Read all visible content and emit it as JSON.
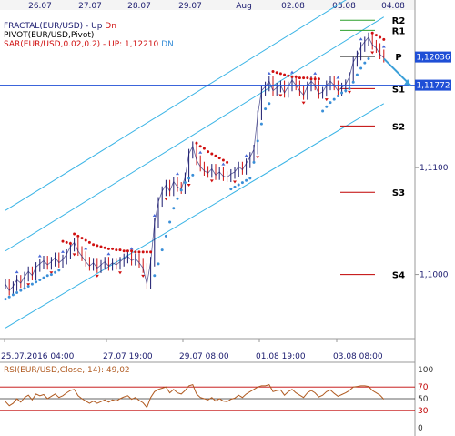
{
  "chart_data": {
    "type": "line",
    "title": "",
    "top_dates": [
      "26.07",
      "27.07",
      "28.07",
      "29.07",
      "Aug",
      "02.08",
      "03.08",
      "04.08"
    ],
    "bottom_time_labels": [
      "25.07.2016 04:00",
      "27.07 19:00",
      "29.07 08:00",
      "01.08 19:00",
      "03.08 08:00"
    ],
    "price_axis": {
      "ticks": [
        "1,1100",
        "1,1000"
      ],
      "ylim": [
        1.094,
        1.1245
      ]
    },
    "price_tags": [
      {
        "label": "1,12036",
        "value": 1.12036,
        "color": "#1f4fd6"
      },
      {
        "label": "1,11772",
        "value": 1.11772,
        "color": "#1f4fd6"
      }
    ],
    "legend": [
      {
        "text": "FRACTAL(EUR/USD) - ",
        "items": [
          {
            "text": "Up",
            "color": "#1a1a6e"
          },
          {
            "text": "Dn",
            "color": "#d01010"
          }
        ],
        "color": "#1a1a6e"
      },
      {
        "text": "PIVOT(EUR/USD,Pivot)",
        "items": [],
        "color": "#000000"
      },
      {
        "text": "SAR(EUR/USD,0.02,0.2) - UP: 1,12210",
        "items": [
          {
            "text": "DN",
            "color": "#3a8fd8"
          }
        ],
        "color": "#d01010"
      }
    ],
    "pivot_levels": [
      {
        "name": "R2",
        "value": 1.1238,
        "color": "#2ca02c"
      },
      {
        "name": "R1",
        "value": 1.12285,
        "color": "#2ca02c"
      },
      {
        "name": "P",
        "value": 1.1204,
        "color": "#333333"
      },
      {
        "name": "S1",
        "value": 1.1174,
        "color": "#c00000"
      },
      {
        "name": "S2",
        "value": 1.1139,
        "color": "#c00000"
      },
      {
        "name": "S3",
        "value": 1.1077,
        "color": "#c00000"
      },
      {
        "name": "S4",
        "value": 1.1,
        "color": "#c00000"
      }
    ],
    "price_series": [
      1.0991,
      1.0985,
      1.0989,
      1.0995,
      1.0992,
      1.0998,
      1.1003,
      1.0999,
      1.1007,
      1.101,
      1.1013,
      1.1009,
      1.1012,
      1.1016,
      1.1011,
      1.1014,
      1.1019,
      1.1026,
      1.103,
      1.1022,
      1.1017,
      1.1012,
      1.1008,
      1.1011,
      1.1006,
      1.1009,
      1.1012,
      1.1008,
      1.1011,
      1.1009,
      1.1012,
      1.1015,
      1.1017,
      1.1013,
      1.1015,
      1.1011,
      1.1006,
      1.0991,
      1.1012,
      1.1048,
      1.1068,
      1.1078,
      1.1084,
      1.1078,
      1.1087,
      1.1082,
      1.108,
      1.1091,
      1.1113,
      1.112,
      1.1107,
      1.1101,
      1.1097,
      1.1095,
      1.1099,
      1.1093,
      1.1096,
      1.1092,
      1.1091,
      1.1094,
      1.1096,
      1.1101,
      1.1098,
      1.1104,
      1.111,
      1.1117,
      1.1149,
      1.1172,
      1.1176,
      1.1181,
      1.1172,
      1.1175,
      1.1177,
      1.117,
      1.1176,
      1.1182,
      1.1177,
      1.1172,
      1.1168,
      1.1176,
      1.1181,
      1.1177,
      1.1169,
      1.1171,
      1.1177,
      1.1181,
      1.1177,
      1.1172,
      1.1175,
      1.1178,
      1.1185,
      1.1199,
      1.1205,
      1.1213,
      1.1218,
      1.1222,
      1.1215,
      1.1212,
      1.1206,
      1.1203
    ],
    "sar_up": [
      1.0977,
      1.0979,
      1.0981,
      1.0983,
      1.0985,
      1.0987,
      1.0989,
      1.0991,
      1.0993,
      1.0995,
      1.0997,
      1.0999,
      1.1,
      1.1002,
      1.1004,
      null,
      null,
      null,
      null,
      null,
      null,
      null,
      null,
      null,
      null,
      null,
      null,
      null,
      null,
      null,
      null,
      null,
      null,
      null,
      null,
      null,
      null,
      null,
      null,
      1.0999,
      1.101,
      1.1023,
      1.1036,
      1.1049,
      1.1062,
      1.1071,
      1.1079,
      1.1086,
      1.109,
      1.1093,
      null,
      null,
      null,
      null,
      null,
      null,
      null,
      null,
      null,
      1.108,
      1.1082,
      1.1084,
      1.1086,
      1.1088,
      1.109,
      1.1105,
      1.1125,
      1.1141,
      1.1155,
      1.116,
      null,
      null,
      null,
      null,
      null,
      null,
      null,
      null,
      null,
      null,
      null,
      null,
      null,
      1.1153,
      1.1157,
      1.1161,
      1.1164,
      1.1167,
      1.117,
      1.1172,
      1.1174,
      1.118,
      1.1187,
      1.1193,
      1.1198,
      1.1202,
      null,
      null,
      null,
      null
    ],
    "sar_dn": [
      null,
      null,
      null,
      null,
      null,
      null,
      null,
      null,
      null,
      null,
      null,
      null,
      null,
      null,
      null,
      1.1031,
      1.103,
      1.1029,
      1.1038,
      1.1036,
      1.1034,
      1.1032,
      1.103,
      1.1028,
      1.1027,
      1.1026,
      1.1025,
      1.1024,
      1.1024,
      1.1023,
      1.1023,
      1.1022,
      1.1022,
      1.1022,
      1.1021,
      1.1021,
      1.1021,
      1.1021,
      1.1021,
      null,
      null,
      null,
      null,
      null,
      null,
      null,
      null,
      null,
      null,
      null,
      1.1123,
      1.112,
      1.1118,
      1.1115,
      1.1113,
      1.1111,
      1.1109,
      1.1107,
      1.1105,
      null,
      null,
      null,
      null,
      null,
      null,
      null,
      null,
      null,
      null,
      null,
      1.119,
      1.1189,
      1.1188,
      1.1187,
      1.1186,
      1.1185,
      1.1185,
      1.1184,
      1.1184,
      1.1184,
      1.1183,
      1.1183,
      1.1183,
      null,
      null,
      null,
      null,
      null,
      null,
      null,
      null,
      null,
      null,
      null,
      null,
      null,
      1.1226,
      1.1224,
      1.1222,
      1.122
    ],
    "channel": {
      "upper": [
        [
          0,
          1.106
        ],
        [
          99,
          1.1279
        ]
      ],
      "middle": [
        [
          0,
          1.1022
        ],
        [
          99,
          1.1241
        ]
      ],
      "lower": [
        [
          0,
          1.095
        ],
        [
          99,
          1.116
        ]
      ]
    },
    "forecast_arrow": {
      "from": [
        99,
        1.1202
      ],
      "to": [
        106,
        1.1177
      ],
      "color": "#3a9fd8"
    },
    "rsi": {
      "label": "RSI(EUR/USD,Close, 14): 49,02",
      "levels": [
        "100",
        "70",
        "50",
        "30",
        "0"
      ],
      "values": [
        45,
        38,
        42,
        50,
        44,
        52,
        56,
        48,
        58,
        55,
        57,
        50,
        54,
        58,
        52,
        55,
        60,
        64,
        66,
        55,
        50,
        46,
        42,
        46,
        42,
        45,
        48,
        44,
        48,
        46,
        50,
        53,
        55,
        49,
        52,
        47,
        43,
        35,
        52,
        62,
        66,
        68,
        70,
        60,
        66,
        60,
        58,
        64,
        72,
        74,
        58,
        52,
        50,
        48,
        52,
        46,
        50,
        46,
        45,
        49,
        51,
        56,
        52,
        58,
        62,
        66,
        70,
        72,
        72,
        74,
        62,
        64,
        65,
        56,
        62,
        66,
        60,
        56,
        52,
        60,
        64,
        60,
        53,
        56,
        62,
        65,
        59,
        54,
        57,
        60,
        64,
        70,
        71,
        72,
        72,
        71,
        64,
        60,
        56,
        49
      ]
    }
  }
}
